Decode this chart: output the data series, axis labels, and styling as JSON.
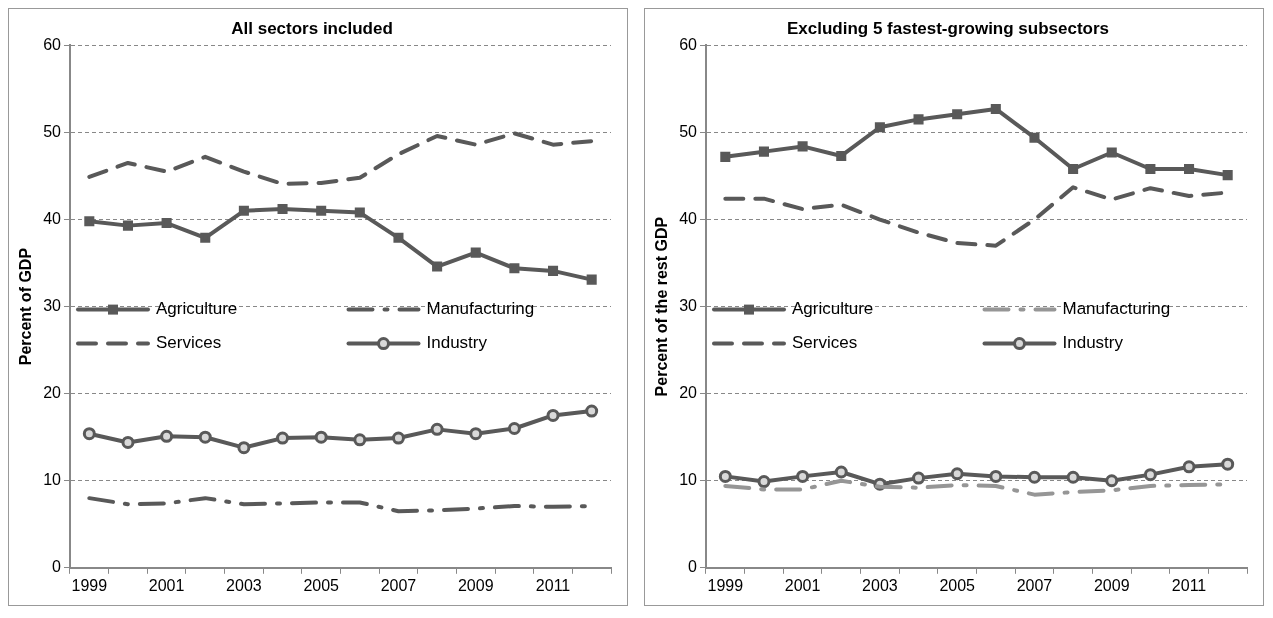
{
  "chart_data": [
    {
      "type": "line",
      "title": "All sectors included",
      "ylabel": "Percent of GDP",
      "categories": [
        "1999",
        null,
        "2001",
        null,
        "2003",
        null,
        "2005",
        null,
        "2007",
        null,
        "2009",
        null,
        "2011",
        null
      ],
      "series": [
        {
          "name": "Agriculture",
          "color": "#595959",
          "marker": "square",
          "line_style": "solid",
          "values": [
            39.8,
            39.3,
            39.6,
            37.9,
            41.0,
            41.2,
            41.0,
            40.8,
            37.9,
            34.6,
            36.2,
            34.4,
            34.1,
            33.1
          ]
        },
        {
          "name": "Manufacturing",
          "color": "#595959",
          "marker": "none",
          "line_style": "dashdot",
          "values": [
            8.0,
            7.3,
            7.4,
            8.0,
            7.3,
            7.4,
            7.5,
            7.5,
            6.5,
            6.6,
            6.8,
            7.1,
            7.0,
            7.1
          ]
        },
        {
          "name": "Services",
          "color": "#595959",
          "marker": "none",
          "line_style": "dashed",
          "values": [
            44.9,
            46.5,
            45.5,
            47.2,
            45.5,
            44.1,
            44.2,
            44.8,
            47.5,
            49.6,
            48.6,
            49.9,
            48.6,
            49.0
          ]
        },
        {
          "name": "Industry",
          "color": "#595959",
          "marker": "circle",
          "line_style": "solid",
          "values": [
            15.4,
            14.4,
            15.1,
            15.0,
            13.8,
            14.9,
            15.0,
            14.7,
            14.9,
            15.9,
            15.4,
            16.0,
            17.5,
            18.0
          ]
        }
      ],
      "ylim": [
        0,
        60
      ],
      "yticks": [
        0,
        10,
        20,
        30,
        40,
        50,
        60
      ],
      "grid": "y",
      "legend": "center"
    },
    {
      "type": "line",
      "title": "Excluding 5 fastest-growing subsectors",
      "ylabel": "Percent of the rest GDP",
      "categories": [
        "1999",
        null,
        "2001",
        null,
        "2003",
        null,
        "2005",
        null,
        "2007",
        null,
        "2009",
        null,
        "2011",
        null
      ],
      "series": [
        {
          "name": "Agriculture",
          "color": "#595959",
          "marker": "square",
          "line_style": "solid",
          "values": [
            47.2,
            47.8,
            48.4,
            47.3,
            50.6,
            51.5,
            52.1,
            52.7,
            49.4,
            45.8,
            47.7,
            45.8,
            45.8,
            45.1
          ]
        },
        {
          "name": "Manufacturing",
          "color": "#969696",
          "marker": "none",
          "line_style": "dashdot",
          "values": [
            9.4,
            9.0,
            9.0,
            10.0,
            9.3,
            9.2,
            9.5,
            9.4,
            8.4,
            8.7,
            8.9,
            9.4,
            9.5,
            9.6
          ]
        },
        {
          "name": "Services",
          "color": "#595959",
          "marker": "none",
          "line_style": "dashed",
          "values": [
            42.4,
            42.4,
            41.2,
            41.7,
            40.0,
            38.5,
            37.3,
            37.0,
            40.0,
            43.7,
            42.3,
            43.6,
            42.7,
            43.1
          ]
        },
        {
          "name": "Industry",
          "color": "#595959",
          "marker": "circle",
          "line_style": "solid",
          "values": [
            10.5,
            9.9,
            10.5,
            11.0,
            9.6,
            10.3,
            10.8,
            10.5,
            10.4,
            10.4,
            10.0,
            10.7,
            11.6,
            11.9
          ]
        }
      ],
      "ylim": [
        0,
        60
      ],
      "yticks": [
        0,
        10,
        20,
        30,
        40,
        50,
        60
      ],
      "grid": "y",
      "legend": "center"
    }
  ]
}
